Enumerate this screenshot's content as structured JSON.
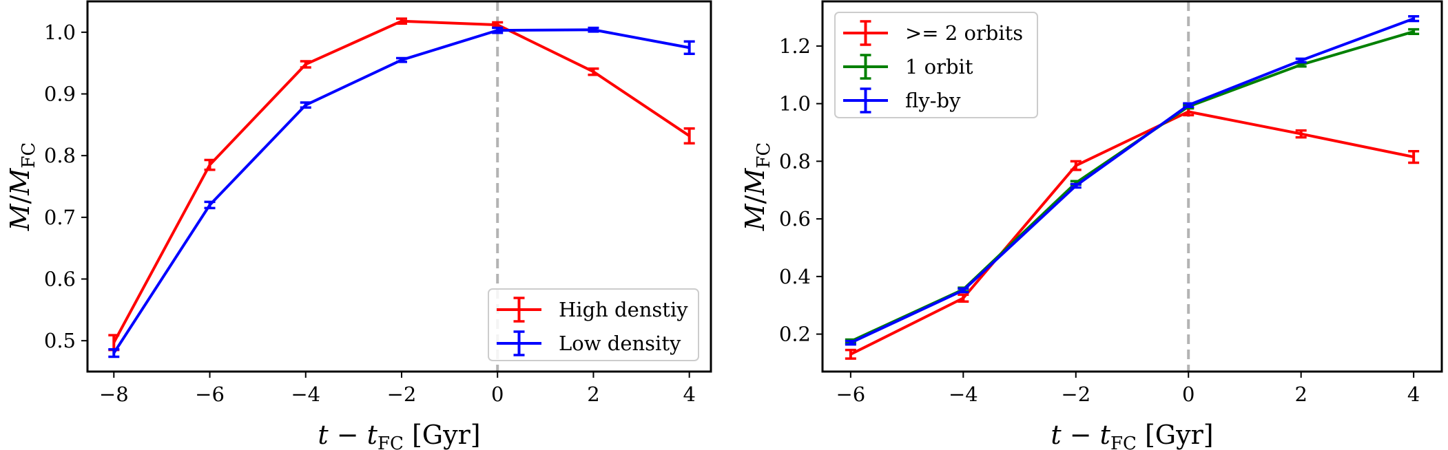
{
  "chart_data": [
    {
      "type": "line",
      "panel": "left",
      "xlabel": "t − t_FC [Gyr]",
      "ylabel": "M/M_FC",
      "xlim": [
        -8.55,
        4.45
      ],
      "ylim": [
        0.45,
        1.05
      ],
      "xticks": [
        -8,
        -6,
        -4,
        -2,
        0,
        2,
        4
      ],
      "xtick_labels": [
        "−8",
        "−6",
        "−4",
        "−2",
        "0",
        "2",
        "4"
      ],
      "yticks": [
        0.5,
        0.6,
        0.7,
        0.8,
        0.9,
        1.0
      ],
      "ytick_labels": [
        "0.5",
        "0.6",
        "0.7",
        "0.8",
        "0.9",
        "1.0"
      ],
      "vline_x": 0,
      "legend_position": "lower-right",
      "series": [
        {
          "name": "High denstiy",
          "color": "#ff0000",
          "x": [
            -8,
            -6,
            -4,
            -2,
            0,
            2,
            4
          ],
          "y": [
            0.497,
            0.785,
            0.948,
            1.018,
            1.012,
            0.936,
            0.832
          ],
          "err": [
            0.012,
            0.008,
            0.005,
            0.004,
            0.004,
            0.005,
            0.012
          ]
        },
        {
          "name": "Low density",
          "color": "#0000ff",
          "x": [
            -8,
            -6,
            -4,
            -2,
            0,
            2,
            4
          ],
          "y": [
            0.48,
            0.72,
            0.882,
            0.955,
            1.003,
            1.004,
            0.975
          ],
          "err": [
            0.006,
            0.005,
            0.004,
            0.003,
            0.004,
            0.003,
            0.01
          ]
        }
      ]
    },
    {
      "type": "line",
      "panel": "right",
      "xlabel": "t − t_FC [Gyr]",
      "ylabel": "M/M_FC",
      "xlim": [
        -6.5,
        4.5
      ],
      "ylim": [
        0.07,
        1.355
      ],
      "xticks": [
        -6,
        -4,
        -2,
        0,
        2,
        4
      ],
      "xtick_labels": [
        "−6",
        "−4",
        "−2",
        "0",
        "2",
        "4"
      ],
      "yticks": [
        0.2,
        0.4,
        0.6,
        0.8,
        1.0,
        1.2
      ],
      "ytick_labels": [
        "0.2",
        "0.4",
        "0.6",
        "0.8",
        "1.0",
        "1.2"
      ],
      "vline_x": 0,
      "legend_position": "upper-left",
      "series": [
        {
          "name": ">= 2 orbits",
          "color": "#ff0000",
          "x": [
            -6,
            -4,
            -2,
            0,
            2,
            4
          ],
          "y": [
            0.13,
            0.325,
            0.785,
            0.972,
            0.895,
            0.815
          ],
          "err": [
            0.015,
            0.012,
            0.015,
            0.012,
            0.012,
            0.02
          ]
        },
        {
          "name": "1 orbit",
          "color": "#008000",
          "x": [
            -6,
            -4,
            -2,
            0,
            2,
            4
          ],
          "y": [
            0.175,
            0.355,
            0.725,
            0.99,
            1.135,
            1.25
          ],
          "err": [
            0.006,
            0.006,
            0.006,
            0.006,
            0.006,
            0.008
          ]
        },
        {
          "name": "fly-by",
          "color": "#0000ff",
          "x": [
            -6,
            -4,
            -2,
            0,
            2,
            4
          ],
          "y": [
            0.17,
            0.352,
            0.715,
            0.995,
            1.15,
            1.295
          ],
          "err": [
            0.006,
            0.006,
            0.006,
            0.006,
            0.006,
            0.008
          ]
        }
      ]
    }
  ]
}
